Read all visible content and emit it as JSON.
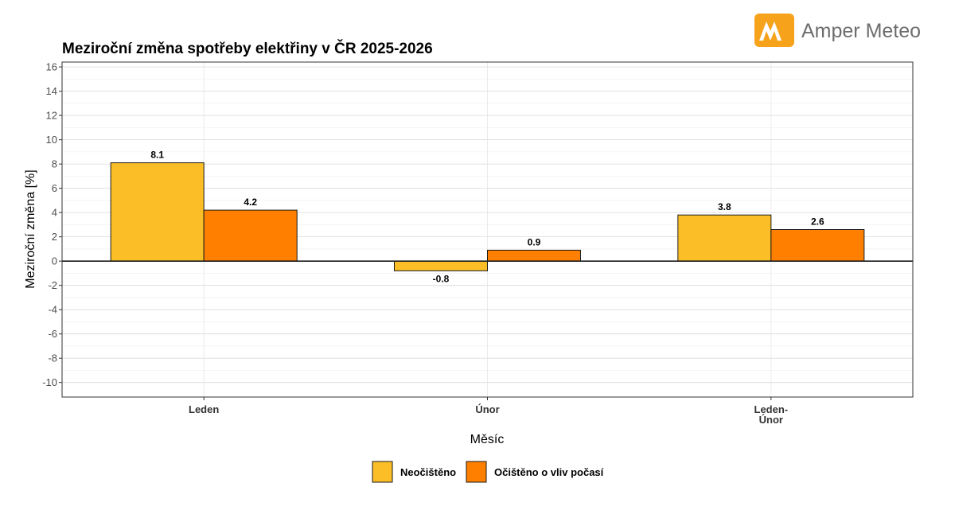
{
  "brand": {
    "name": "Amper Meteo",
    "color": "#F7A21B"
  },
  "chart_data": {
    "type": "bar",
    "title": "Meziroční změna spotřeby elektřiny v ČR 2025-2026",
    "xlabel": "Měsíc",
    "ylabel": "Meziroční změna [%]",
    "ylim": [
      -11.2,
      16.4
    ],
    "yticks": [
      16,
      14,
      12,
      10,
      8,
      6,
      4,
      2,
      0,
      -2,
      -4,
      -6,
      -8,
      -10
    ],
    "categories": [
      [
        "Leden"
      ],
      [
        "Únor"
      ],
      [
        "Leden-",
        "Únor"
      ]
    ],
    "series": [
      {
        "name": "Neočištěno",
        "color": "#FBBE26",
        "values": [
          8.1,
          -0.8,
          3.8
        ]
      },
      {
        "name": "Očištěno o vliv počasí",
        "color": "#FF8000",
        "values": [
          4.2,
          0.9,
          2.6
        ]
      }
    ],
    "grid": true,
    "legend": "bottom"
  }
}
